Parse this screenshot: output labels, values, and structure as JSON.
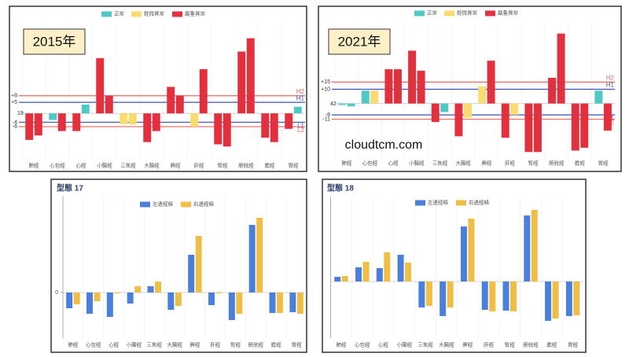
{
  "chart_data": [
    {
      "type": "bar",
      "title": "2015年",
      "legend": [
        {
          "name": "正常",
          "color": "#4fc9c4"
        },
        {
          "name": "輕微異常",
          "color": "#f8dc6f"
        },
        {
          "name": "嚴重異常",
          "color": "#e3303f"
        }
      ],
      "categories": [
        "肺經",
        "心包經",
        "心經",
        "小腸經",
        "三焦經",
        "大腸經",
        "脾經",
        "肝經",
        "腎經",
        "膀胱經",
        "膽經",
        "胃經"
      ],
      "series": [
        {
          "values": [
            -12,
            -3,
            -8,
            25,
            -5,
            -13,
            12,
            -6,
            -14,
            28,
            -11,
            -7
          ],
          "status": [
            2,
            0,
            2,
            2,
            1,
            2,
            2,
            1,
            2,
            2,
            2,
            2
          ]
        },
        {
          "values": [
            -10,
            -8,
            4,
            8,
            -5,
            -8,
            8,
            20,
            -15,
            34,
            -13,
            3
          ],
          "status": [
            2,
            2,
            0,
            2,
            1,
            2,
            2,
            2,
            2,
            2,
            2,
            0
          ]
        }
      ],
      "reference_lines": [
        {
          "value": 8,
          "label": "+8",
          "tag": "H2",
          "color": "#e8675e"
        },
        {
          "value": 5,
          "label": "+5",
          "tag": "H1",
          "color": "#3f51b5"
        },
        {
          "value": -4,
          "label": "-4",
          "tag": "L1",
          "color": "#3f51b5"
        },
        {
          "value": -6,
          "label": "-6",
          "tag": "L2",
          "color": "#e8675e"
        }
      ],
      "annotations": [
        "19"
      ],
      "ylim": [
        -22,
        41
      ]
    },
    {
      "type": "bar",
      "title": "2021年",
      "legend": [
        {
          "name": "正常",
          "color": "#4fc9c4"
        },
        {
          "name": "輕微異常",
          "color": "#f8dc6f"
        },
        {
          "name": "嚴重異常",
          "color": "#e3303f"
        }
      ],
      "categories": [
        "肺經",
        "心包經",
        "心經",
        "小腸經",
        "三焦經",
        "大腸經",
        "脾經",
        "肝經",
        "腎經",
        "膀胱經",
        "膽經",
        "胃經"
      ],
      "series": [
        {
          "values": [
            -1,
            9,
            24,
            37,
            -13,
            -23,
            12,
            -24,
            -34,
            18,
            -33,
            9
          ],
          "status": [
            0,
            0,
            2,
            2,
            2,
            2,
            1,
            2,
            2,
            2,
            2,
            0
          ]
        },
        {
          "values": [
            -2,
            9,
            24,
            23,
            -6,
            -10,
            30,
            -8,
            -34,
            49,
            -31,
            -19
          ],
          "status": [
            0,
            1,
            2,
            2,
            0,
            1,
            2,
            1,
            2,
            2,
            2,
            2
          ]
        }
      ],
      "reference_lines": [
        {
          "value": 15,
          "label": "+15",
          "tag": "H2",
          "color": "#e8675e"
        },
        {
          "value": 10,
          "label": "+10",
          "tag": "H1",
          "color": "#3f51b5"
        },
        {
          "value": -8,
          "label": "-8",
          "tag": "L1",
          "color": "#3f51b5"
        },
        {
          "value": -11,
          "label": "-11",
          "tag": "L2",
          "color": "#e8675e"
        }
      ],
      "annotations": [
        "42"
      ],
      "watermark": "cloudtcm.com",
      "ylim": [
        -41,
        56
      ]
    },
    {
      "type": "bar",
      "title": "型態 17",
      "categories": [
        "肺經",
        "心包經",
        "心經",
        "小腸經",
        "三焦經",
        "大腸經",
        "脾經",
        "肝經",
        "腎經",
        "膀胱經",
        "膽經",
        "胃經"
      ],
      "series": [
        {
          "name": "左邊經絡",
          "color": "#4a7fdc",
          "values": [
            -20,
            -27,
            -31,
            -14,
            8,
            -22,
            48,
            -16,
            -35,
            86,
            -26,
            -25
          ]
        },
        {
          "name": "右邊經絡",
          "color": "#f0bd45",
          "values": [
            -15,
            -11,
            -1,
            8,
            14,
            -17,
            72,
            -1,
            -27,
            95,
            -26,
            -27
          ]
        }
      ],
      "yticks": [
        0
      ],
      "ylim": [
        -58,
        122
      ]
    },
    {
      "type": "bar",
      "title": "型態 18",
      "categories": [
        "肺經",
        "心包經",
        "心經",
        "小腸經",
        "三焦經",
        "大腸經",
        "脾經",
        "肝經",
        "腎經",
        "膀胱經",
        "膽經",
        "胃經"
      ],
      "series": [
        {
          "name": "左邊經絡",
          "color": "#4a7fdc",
          "values": [
            6,
            18,
            17,
            34,
            -33,
            -44,
            70,
            -36,
            -37,
            84,
            -50,
            -44
          ]
        },
        {
          "name": "右邊經絡",
          "color": "#f0bd45",
          "values": [
            7,
            25,
            37,
            24,
            -31,
            -33,
            80,
            -38,
            -38,
            91,
            -47,
            -43
          ]
        }
      ],
      "ylim": [
        -72,
        108
      ]
    }
  ]
}
